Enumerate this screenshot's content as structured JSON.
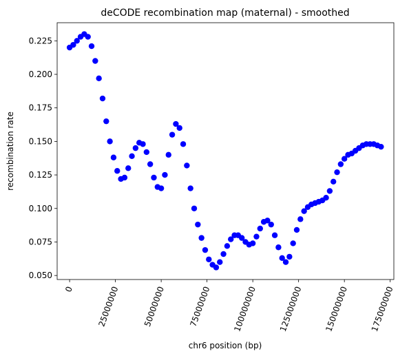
{
  "chart_data": {
    "type": "scatter",
    "title": "deCODE recombination map (maternal) - smoothed",
    "xlabel": "chr6 position (bp)",
    "ylabel": "recombination rate",
    "xlim": [
      -6800000,
      177000000
    ],
    "ylim": [
      0.047,
      0.2385
    ],
    "xticks": [
      0,
      25000000,
      50000000,
      75000000,
      100000000,
      125000000,
      150000000,
      175000000
    ],
    "xtick_labels": [
      "0",
      "25000000",
      "50000000",
      "75000000",
      "100000000",
      "125000000",
      "150000000",
      "175000000"
    ],
    "yticks": [
      0.05,
      0.075,
      0.1,
      0.125,
      0.15,
      0.175,
      0.2,
      0.225
    ],
    "ytick_labels": [
      "0.050",
      "0.075",
      "0.100",
      "0.125",
      "0.150",
      "0.175",
      "0.200",
      "0.225"
    ],
    "grid": false,
    "legend": "none",
    "marker_color": "#0000ff",
    "series": [
      {
        "x": [
          0,
          2000000,
          4000000,
          6000000,
          8000000,
          10000000,
          12000000,
          14000000,
          16000000,
          18000000,
          20000000,
          22000000,
          24000000,
          26000000,
          28000000,
          30000000,
          32000000,
          34000000,
          36000000,
          38000000,
          40000000,
          42000000,
          44000000,
          46000000,
          48000000,
          50000000,
          52000000,
          54000000,
          56000000,
          58000000,
          60000000,
          62000000,
          64000000,
          66000000,
          68000000,
          70000000,
          72000000,
          74000000,
          76000000,
          78000000,
          80000000,
          82000000,
          84000000,
          86000000,
          88000000,
          90000000,
          92000000,
          94000000,
          96000000,
          98000000,
          100000000,
          102000000,
          104000000,
          106000000,
          108000000,
          110000000,
          112000000,
          114000000,
          116000000,
          118000000,
          120000000,
          122000000,
          124000000,
          126000000,
          128000000,
          130000000,
          132000000,
          134000000,
          136000000,
          138000000,
          140000000,
          142000000,
          144000000,
          146000000,
          148000000,
          150000000,
          152000000,
          154000000,
          156000000,
          158000000,
          160000000,
          162000000,
          164000000,
          166000000,
          168000000,
          170000000
        ],
        "y": [
          0.22,
          0.222,
          0.225,
          0.228,
          0.23,
          0.228,
          0.221,
          0.21,
          0.197,
          0.182,
          0.165,
          0.15,
          0.138,
          0.128,
          0.122,
          0.123,
          0.13,
          0.139,
          0.145,
          0.149,
          0.148,
          0.142,
          0.133,
          0.123,
          0.116,
          0.115,
          0.125,
          0.14,
          0.155,
          0.163,
          0.16,
          0.148,
          0.132,
          0.115,
          0.1,
          0.088,
          0.078,
          0.069,
          0.062,
          0.058,
          0.056,
          0.06,
          0.066,
          0.072,
          0.077,
          0.08,
          0.08,
          0.078,
          0.075,
          0.073,
          0.074,
          0.079,
          0.085,
          0.09,
          0.091,
          0.088,
          0.08,
          0.071,
          0.063,
          0.06,
          0.064,
          0.074,
          0.084,
          0.092,
          0.098,
          0.101,
          0.103,
          0.104,
          0.105,
          0.106,
          0.108,
          0.113,
          0.12,
          0.127,
          0.133,
          0.137,
          0.14,
          0.141,
          0.143,
          0.145,
          0.147,
          0.148,
          0.148,
          0.148,
          0.147,
          0.146
        ]
      }
    ]
  }
}
